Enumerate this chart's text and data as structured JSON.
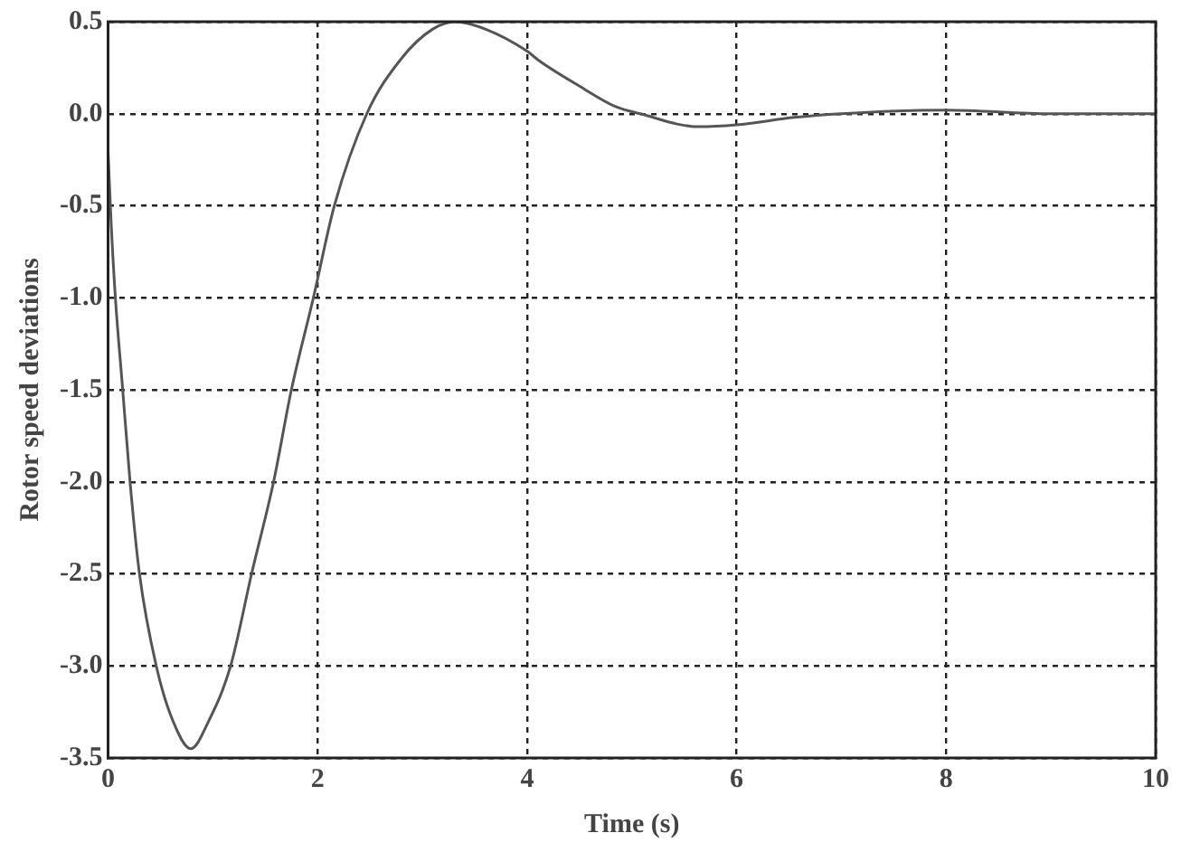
{
  "chart_data": {
    "type": "line",
    "xlabel": "Time (s)",
    "ylabel": "Rotor speed deviations",
    "xlim": [
      0,
      10
    ],
    "xticks": [
      0,
      2,
      4,
      6,
      8,
      10
    ],
    "ylim": [
      -3.5,
      0.5
    ],
    "yticks": [
      {
        "value": 0.5,
        "label": "0.5"
      },
      {
        "value": 0,
        "label": "0.0"
      },
      {
        "value": -0.5,
        "label": "-0.5"
      },
      {
        "value": -1,
        "label": "-1.0"
      },
      {
        "value": -1.5,
        "label": "-1.5"
      },
      {
        "value": -2,
        "label": "-2.0"
      },
      {
        "value": -2.5,
        "label": "-2.5"
      },
      {
        "value": -3,
        "label": "-3.0"
      },
      {
        "value": -3.5,
        "label": "-3.5"
      }
    ],
    "grid": true,
    "legend": false,
    "marker": "none",
    "line_style": "solid",
    "series": [
      {
        "color": "#555555",
        "x": [
          0,
          0.03,
          0.07,
          0.14,
          0.21,
          0.3,
          0.46,
          0.62,
          0.79,
          0.96,
          1.17,
          1.37,
          1.58,
          1.75,
          1.96,
          2.16,
          2.47,
          2.8,
          3.1,
          3.32,
          3.6,
          4.0,
          4.11,
          4.5,
          4.84,
          5.08,
          5.63,
          6.0,
          6.55,
          7.0,
          8.0,
          9.0,
          10.0
        ],
        "values": [
          -0.2,
          -0.6,
          -1.0,
          -1.5,
          -2.0,
          -2.5,
          -3.0,
          -3.3,
          -3.45,
          -3.3,
          -3.0,
          -2.5,
          -2.0,
          -1.5,
          -1.0,
          -0.5,
          0.0,
          0.3,
          0.46,
          0.5,
          0.46,
          0.34,
          0.29,
          0.15,
          0.04,
          0.0,
          -0.07,
          -0.06,
          -0.02,
          0.0,
          0.02,
          0.0,
          0.0
        ]
      }
    ]
  }
}
